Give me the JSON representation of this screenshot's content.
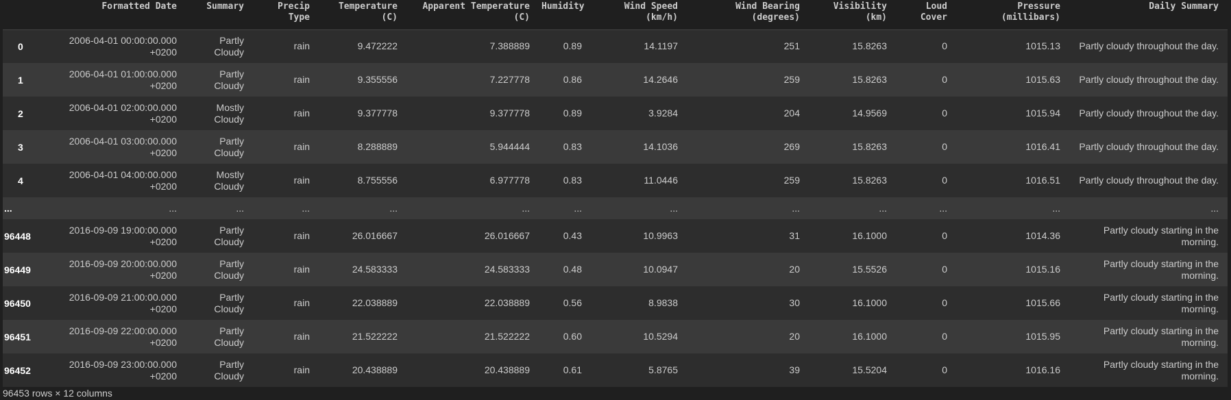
{
  "columns": [
    "",
    "Formatted Date",
    "Summary",
    "Precip Type",
    "Temperature (C)",
    "Apparent Temperature (C)",
    "Humidity",
    "Wind Speed (km/h)",
    "Wind Bearing (degrees)",
    "Visibility (km)",
    "Loud Cover",
    "Pressure (millibars)",
    "Daily Summary"
  ],
  "rows": [
    {
      "index": "0",
      "cells": [
        "2006-04-01 00:00:00.000 +0200",
        "Partly Cloudy",
        "rain",
        "9.472222",
        "7.388889",
        "0.89",
        "14.1197",
        "251",
        "15.8263",
        "0",
        "1015.13",
        "Partly cloudy throughout the day."
      ]
    },
    {
      "index": "1",
      "cells": [
        "2006-04-01 01:00:00.000 +0200",
        "Partly Cloudy",
        "rain",
        "9.355556",
        "7.227778",
        "0.86",
        "14.2646",
        "259",
        "15.8263",
        "0",
        "1015.63",
        "Partly cloudy throughout the day."
      ]
    },
    {
      "index": "2",
      "cells": [
        "2006-04-01 02:00:00.000 +0200",
        "Mostly Cloudy",
        "rain",
        "9.377778",
        "9.377778",
        "0.89",
        "3.9284",
        "204",
        "14.9569",
        "0",
        "1015.94",
        "Partly cloudy throughout the day."
      ]
    },
    {
      "index": "3",
      "cells": [
        "2006-04-01 03:00:00.000 +0200",
        "Partly Cloudy",
        "rain",
        "8.288889",
        "5.944444",
        "0.83",
        "14.1036",
        "269",
        "15.8263",
        "0",
        "1016.41",
        "Partly cloudy throughout the day."
      ]
    },
    {
      "index": "4",
      "cells": [
        "2006-04-01 04:00:00.000 +0200",
        "Mostly Cloudy",
        "rain",
        "8.755556",
        "6.977778",
        "0.83",
        "11.0446",
        "259",
        "15.8263",
        "0",
        "1016.51",
        "Partly cloudy throughout the day."
      ]
    },
    {
      "index": "...",
      "cells": [
        "...",
        "...",
        "...",
        "...",
        "...",
        "...",
        "...",
        "...",
        "...",
        "...",
        "...",
        "..."
      ]
    },
    {
      "index": "96448",
      "cells": [
        "2016-09-09 19:00:00.000 +0200",
        "Partly Cloudy",
        "rain",
        "26.016667",
        "26.016667",
        "0.43",
        "10.9963",
        "31",
        "16.1000",
        "0",
        "1014.36",
        "Partly cloudy starting in the morning."
      ]
    },
    {
      "index": "96449",
      "cells": [
        "2016-09-09 20:00:00.000 +0200",
        "Partly Cloudy",
        "rain",
        "24.583333",
        "24.583333",
        "0.48",
        "10.0947",
        "20",
        "15.5526",
        "0",
        "1015.16",
        "Partly cloudy starting in the morning."
      ]
    },
    {
      "index": "96450",
      "cells": [
        "2016-09-09 21:00:00.000 +0200",
        "Partly Cloudy",
        "rain",
        "22.038889",
        "22.038889",
        "0.56",
        "8.9838",
        "30",
        "16.1000",
        "0",
        "1015.66",
        "Partly cloudy starting in the morning."
      ]
    },
    {
      "index": "96451",
      "cells": [
        "2016-09-09 22:00:00.000 +0200",
        "Partly Cloudy",
        "rain",
        "21.522222",
        "21.522222",
        "0.60",
        "10.5294",
        "20",
        "16.1000",
        "0",
        "1015.95",
        "Partly cloudy starting in the morning."
      ]
    },
    {
      "index": "96452",
      "cells": [
        "2016-09-09 23:00:00.000 +0200",
        "Partly Cloudy",
        "rain",
        "20.438889",
        "20.438889",
        "0.61",
        "5.8765",
        "39",
        "15.5204",
        "0",
        "1016.16",
        "Partly cloudy starting in the morning."
      ]
    }
  ],
  "footer": "96453 rows × 12 columns",
  "colors": {
    "background": "#1f1f1f",
    "row_dark": "#2d2d2d",
    "row_light": "#3a3a3a",
    "text": "#cccccc",
    "index_text": "#ffffff"
  }
}
